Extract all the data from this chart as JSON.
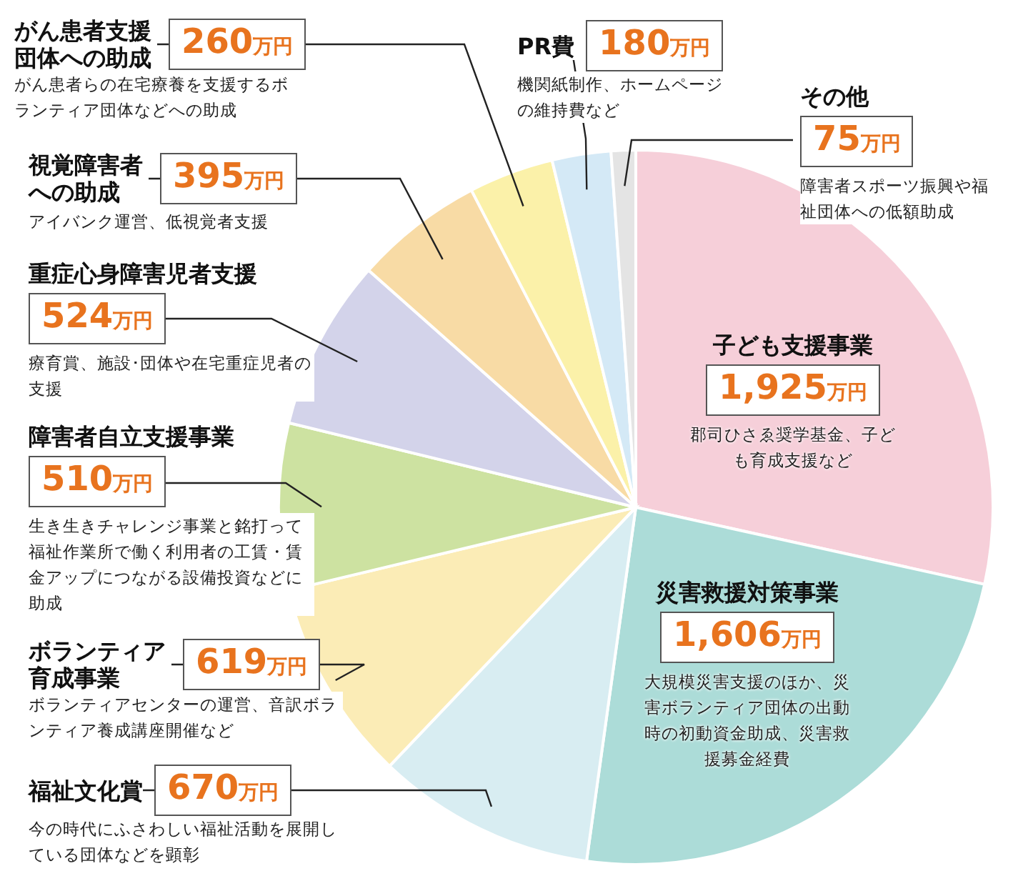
{
  "chart_data": {
    "type": "pie",
    "categories": [
      "子ども支援事業",
      "災害救援対策事業",
      "福祉文化賞",
      "ボランティア育成事業",
      "障害者自立支援事業",
      "重症心身障害児者支援",
      "視覚障害者への助成",
      "がん患者支援団体への助成",
      "PR費",
      "その他"
    ],
    "values": [
      1925,
      1606,
      670,
      619,
      510,
      524,
      395,
      260,
      180,
      75
    ],
    "value_labels": [
      "1,925万円",
      "1,606万円",
      "670万円",
      "619万円",
      "510万円",
      "524万円",
      "395万円",
      "260万円",
      "180万円",
      "75万円"
    ],
    "colors": [
      "#f6cfd9",
      "#acdcd8",
      "#d8edf2",
      "#fbecb6",
      "#cde2a1",
      "#d3d3ea",
      "#f8dba5",
      "#fbf1a9",
      "#d4e9f6",
      "#e4e4e4"
    ],
    "annotations": [
      "郡司ひさゑ奨学基金、子ども育成支援など",
      "大規模災害支援のほか、災害ボランティア団体の出動時の初動資金助成、災害救援募金経費",
      "今の時代にふさわしい福祉活動を展開している団体などを顕彰",
      "ボランティアセンターの運営、音訳ボランティア養成講座開催など",
      "生き生きチャレンジ事業と銘打って福祉作業所で働く利用者の工賃・賃金アップにつながる設備投資などに助成",
      "療育賞、施設･団体や在宅重症児者の支援",
      "アイバンク運営、低視覚者支援",
      "がん患者らの在宅療養を支援するボランティア団体などへの助成",
      "機関紙制作、ホームページの維持費など",
      "障害者スポーツ振興や福祉団体への低額助成"
    ]
  }
}
